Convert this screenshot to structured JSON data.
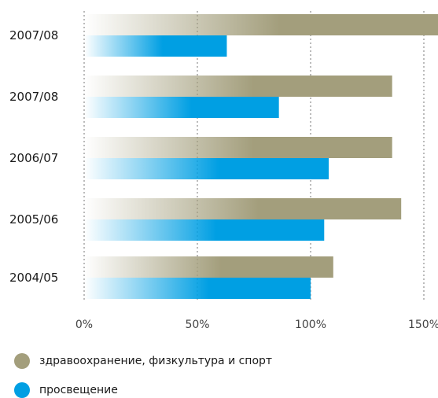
{
  "chart_data": {
    "type": "bar",
    "orientation": "horizontal",
    "categories": [
      "2007/08",
      "2007/08",
      "2006/07",
      "2005/06",
      "2004/05"
    ],
    "series": [
      {
        "name": "здравоохранение, физкультура и спорт",
        "color": "#a39e7c",
        "values": [
          157,
          136,
          136,
          140,
          110
        ]
      },
      {
        "name": "просвещение",
        "color": "#009fe3",
        "values": [
          63,
          86,
          108,
          106,
          100
        ]
      }
    ],
    "xlim": [
      0,
      150
    ],
    "xticks": [
      0,
      50,
      100,
      150
    ],
    "xtick_labels": [
      "0%",
      "50%",
      "100%",
      "150%"
    ],
    "grid": "vertical-dotted",
    "legend_placement": "bottom-left"
  }
}
